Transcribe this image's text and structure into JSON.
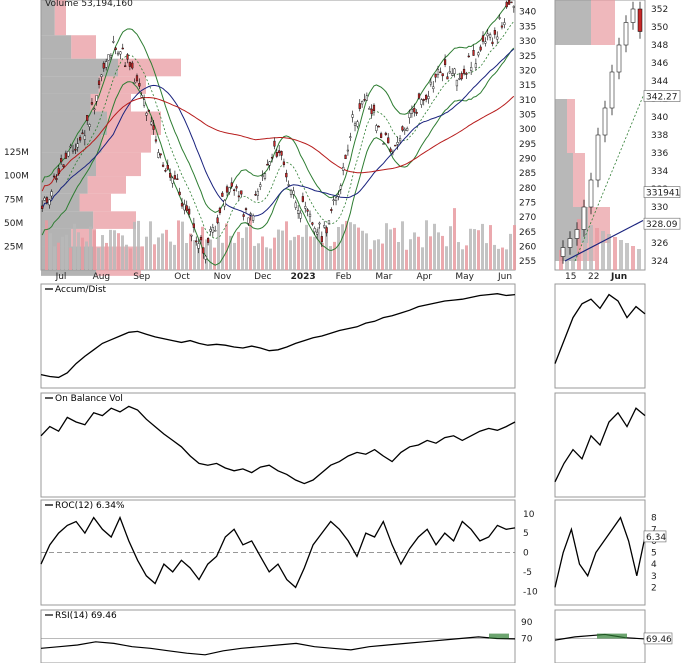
{
  "chart_data": [
    {
      "type": "candlestick",
      "panel": "main-price",
      "volume_label": "Volume 53,194,160",
      "x_tick_labels": [
        "Jul",
        "Aug",
        "Sep",
        "Oct",
        "Nov",
        "Dec",
        "2023",
        "Feb",
        "Mar",
        "Apr",
        "May",
        "Jun"
      ],
      "y_tick_labels": [
        "340",
        "335",
        "330",
        "325",
        "320",
        "315",
        "310",
        "305",
        "300",
        "295",
        "290",
        "285",
        "280",
        "275",
        "270",
        "265",
        "260",
        "255"
      ],
      "ylim": [
        252,
        344
      ],
      "volume_axis_labels": [
        "125M",
        "100M",
        "75M",
        "50M",
        "25M"
      ],
      "volume_ylim": [
        0,
        140
      ],
      "close_path": [
        {
          "x": "Jul",
          "y": 272
        },
        {
          "x": "Jul",
          "y": 285
        },
        {
          "x": "Jul",
          "y": 292
        },
        {
          "x": "Aug",
          "y": 300
        },
        {
          "x": "Aug",
          "y": 318
        },
        {
          "x": "Aug",
          "y": 330
        },
        {
          "x": "Aug",
          "y": 320
        },
        {
          "x": "Sep",
          "y": 308
        },
        {
          "x": "Sep",
          "y": 290
        },
        {
          "x": "Sep",
          "y": 283
        },
        {
          "x": "Oct",
          "y": 268
        },
        {
          "x": "Oct",
          "y": 258
        },
        {
          "x": "Oct",
          "y": 272
        },
        {
          "x": "Nov",
          "y": 282
        },
        {
          "x": "Nov",
          "y": 268
        },
        {
          "x": "Nov",
          "y": 284
        },
        {
          "x": "Dec",
          "y": 294
        },
        {
          "x": "Dec",
          "y": 278
        },
        {
          "x": "Dec",
          "y": 270
        },
        {
          "x": "2023",
          "y": 264
        },
        {
          "x": "2023",
          "y": 276
        },
        {
          "x": "Feb",
          "y": 302
        },
        {
          "x": "Feb",
          "y": 310
        },
        {
          "x": "Mar",
          "y": 298
        },
        {
          "x": "Mar",
          "y": 292
        },
        {
          "x": "Apr",
          "y": 305
        },
        {
          "x": "Apr",
          "y": 312
        },
        {
          "x": "Apr",
          "y": 320
        },
        {
          "x": "May",
          "y": 318
        },
        {
          "x": "May",
          "y": 322
        },
        {
          "x": "May",
          "y": 328
        },
        {
          "x": "Jun",
          "y": 335
        },
        {
          "x": "Jun",
          "y": 343
        }
      ]
    },
    {
      "type": "candlestick",
      "panel": "zoom-price",
      "x_tick_labels": [
        "15",
        "22",
        "Jun"
      ],
      "y_tick_labels": [
        "352",
        "350",
        "348",
        "346",
        "344",
        "342",
        "340",
        "338",
        "336",
        "334",
        "332",
        "330",
        "328",
        "326",
        "324"
      ],
      "ylim": [
        323,
        353
      ],
      "value_badges": [
        "342.27",
        "331941",
        "328.09"
      ],
      "close_path": [
        {
          "x": "15",
          "y": 325.5
        },
        {
          "x": "15",
          "y": 326.5
        },
        {
          "x": "15",
          "y": 327.5
        },
        {
          "x": "22",
          "y": 330
        },
        {
          "x": "22",
          "y": 333
        },
        {
          "x": "22",
          "y": 338
        },
        {
          "x": "22",
          "y": 341
        },
        {
          "x": "22",
          "y": 345
        },
        {
          "x": "Jun",
          "y": 348
        },
        {
          "x": "Jun",
          "y": 350.5
        },
        {
          "x": "Jun",
          "y": 352
        },
        {
          "x": "Jun",
          "y": 349.5
        }
      ]
    },
    {
      "type": "line",
      "panel": "accum-dist",
      "label": "Accum/Dist",
      "ylim": [
        0,
        100
      ],
      "values": [
        8,
        6,
        5,
        10,
        20,
        28,
        35,
        42,
        46,
        50,
        54,
        55,
        52,
        49,
        47,
        45,
        43,
        45,
        42,
        40,
        41,
        40,
        38,
        37,
        39,
        37,
        34,
        35,
        38,
        42,
        45,
        48,
        50,
        53,
        56,
        58,
        60,
        64,
        66,
        70,
        72,
        75,
        78,
        82,
        84,
        86,
        88,
        89,
        90,
        92,
        94,
        95,
        96,
        94,
        95
      ]
    },
    {
      "type": "line",
      "panel": "on-balance-vol",
      "label": "On Balance Vol",
      "ylim": [
        0,
        100
      ],
      "values": [
        60,
        70,
        65,
        80,
        75,
        72,
        85,
        82,
        90,
        86,
        92,
        88,
        78,
        70,
        62,
        55,
        48,
        38,
        30,
        28,
        30,
        25,
        22,
        24,
        20,
        26,
        28,
        22,
        18,
        12,
        8,
        12,
        20,
        28,
        32,
        38,
        42,
        40,
        45,
        38,
        32,
        42,
        48,
        50,
        55,
        52,
        58,
        60,
        55,
        60,
        65,
        68,
        66,
        70,
        75
      ]
    },
    {
      "type": "line",
      "panel": "roc",
      "label": "ROC(12) 6.34%",
      "y_tick_labels": [
        "10",
        "5",
        "0",
        "-5",
        "-10"
      ],
      "ylim": [
        -12,
        12
      ],
      "values": [
        -3,
        2,
        5,
        7,
        8,
        5,
        9,
        6,
        4,
        9,
        3,
        -2,
        -6,
        -8,
        -3,
        -5,
        -2,
        -4,
        -7,
        -3,
        -1,
        4,
        6,
        2,
        3,
        -1,
        -5,
        -3,
        -7,
        -9,
        -4,
        2,
        5,
        8,
        6,
        3,
        -1,
        5,
        4,
        8,
        2,
        -3,
        1,
        4,
        6,
        2,
        5,
        3,
        8,
        6,
        3,
        4,
        7,
        6,
        6.34
      ]
    },
    {
      "type": "line",
      "panel": "roc-zoom",
      "y_tick_labels": [
        "8",
        "7",
        "6",
        "5",
        "4",
        "3",
        "2"
      ],
      "value_badge": "6.34",
      "ylim": [
        1,
        9
      ],
      "values": [
        2,
        5,
        7,
        4,
        3,
        5,
        6,
        7,
        8,
        6,
        3,
        6.34
      ]
    },
    {
      "type": "line",
      "panel": "rsi",
      "label": "RSI(14) 69.46",
      "y_tick_labels": [
        "90",
        "70"
      ],
      "value_badge": "69.46",
      "ylim": [
        40,
        100
      ],
      "values": [
        58,
        60,
        62,
        66,
        64,
        60,
        58,
        55,
        52,
        50,
        55,
        58,
        60,
        62,
        64,
        60,
        58,
        56,
        60,
        62,
        64,
        66,
        68,
        70,
        72,
        70,
        69.46
      ]
    }
  ]
}
